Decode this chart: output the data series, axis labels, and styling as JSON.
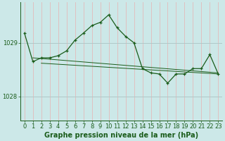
{
  "title": "Graphe pression niveau de la mer (hPa)",
  "bg_color": "#cce8e8",
  "grid_color_v": "#e8b0b0",
  "grid_color_h": "#b0c8c8",
  "line_color": "#1a5c1a",
  "xlim": [
    -0.5,
    23.5
  ],
  "ylim": [
    1027.55,
    1029.75
  ],
  "yticks": [
    1028,
    1029
  ],
  "xticks": [
    0,
    1,
    2,
    3,
    4,
    5,
    6,
    7,
    8,
    9,
    10,
    11,
    12,
    13,
    14,
    15,
    16,
    17,
    18,
    19,
    20,
    21,
    22,
    23
  ],
  "main_x": [
    0,
    1,
    2,
    3,
    4,
    5,
    6,
    7,
    8,
    9,
    10,
    11,
    12,
    13,
    14,
    15,
    16,
    17,
    18,
    19,
    20,
    21,
    22,
    23
  ],
  "main_y": [
    1029.18,
    1028.65,
    1028.72,
    1028.72,
    1028.76,
    1028.85,
    1029.05,
    1029.18,
    1029.32,
    1029.38,
    1029.52,
    1029.28,
    1029.12,
    1029.0,
    1028.52,
    1028.44,
    1028.42,
    1028.25,
    1028.42,
    1028.42,
    1028.52,
    1028.52,
    1028.78,
    1028.42
  ],
  "trend1_x": [
    1,
    23
  ],
  "trend1_y": [
    1028.72,
    1028.44
  ],
  "trend2_x": [
    2,
    23
  ],
  "trend2_y": [
    1028.62,
    1028.42
  ],
  "xlabel_fontsize": 7.0,
  "tick_fontsize": 6.0,
  "ylabel_offset": -0.3
}
